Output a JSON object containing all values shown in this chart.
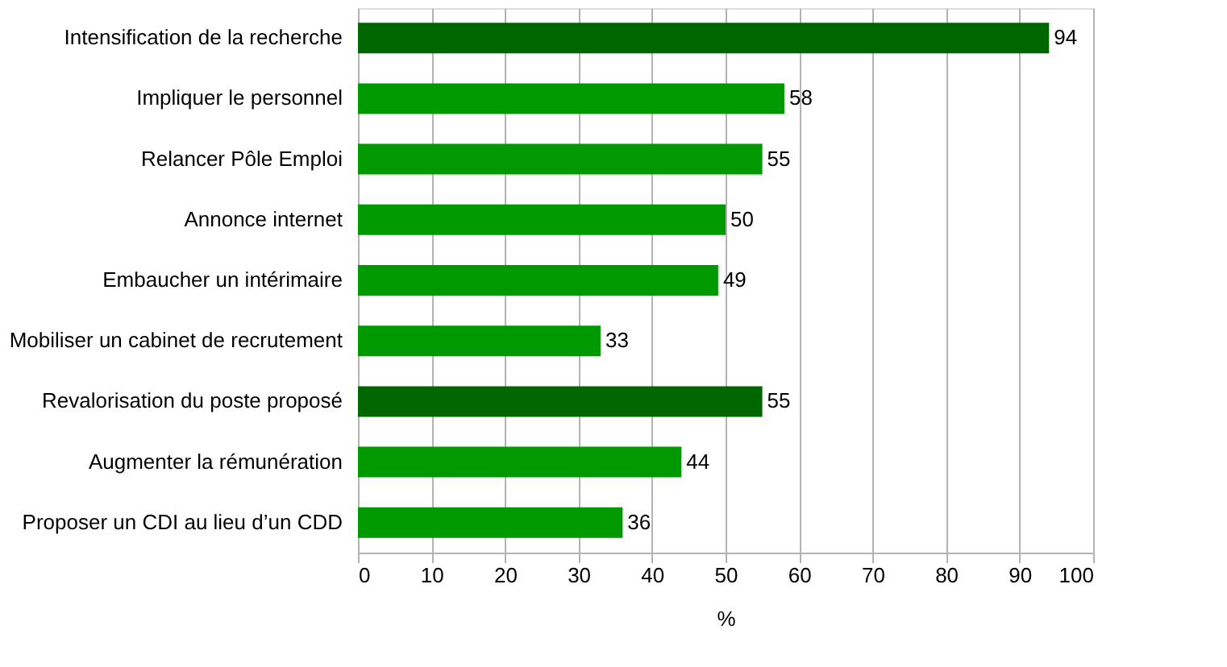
{
  "chart_data": {
    "type": "bar",
    "orientation": "horizontal",
    "xlabel": "%",
    "categories": [
      "Intensification de la recherche",
      "Impliquer le personnel",
      "Relancer Pôle Emploi",
      "Annonce internet",
      "Embaucher un intérimaire",
      "Mobiliser un cabinet de recrutement",
      "Revalorisation du poste proposé",
      "Augmenter la rémunération",
      "Proposer un CDI au lieu d’un CDD"
    ],
    "values": [
      94,
      58,
      55,
      50,
      49,
      33,
      55,
      44,
      36
    ],
    "colors": [
      "#006600",
      "#009900",
      "#009900",
      "#009900",
      "#009900",
      "#009900",
      "#006600",
      "#009900",
      "#009900"
    ],
    "xlim": [
      0,
      100
    ],
    "xticks": [
      0,
      10,
      20,
      30,
      40,
      50,
      60,
      70,
      80,
      90,
      100
    ],
    "grid": "x",
    "data_labels": true
  }
}
